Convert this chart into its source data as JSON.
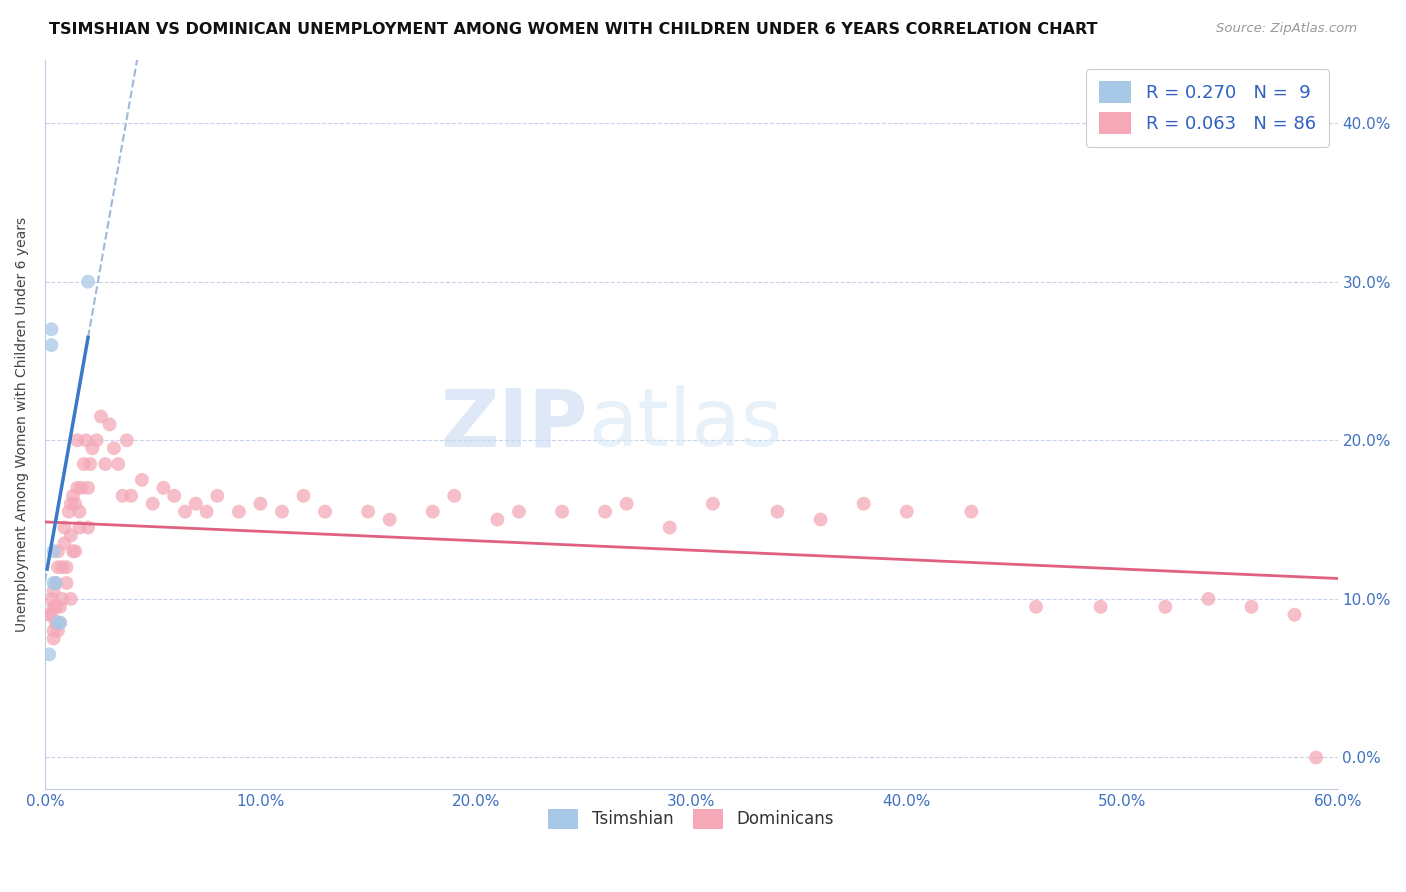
{
  "title": "TSIMSHIAN VS DOMINICAN UNEMPLOYMENT AMONG WOMEN WITH CHILDREN UNDER 6 YEARS CORRELATION CHART",
  "source": "Source: ZipAtlas.com",
  "ylabel": "Unemployment Among Women with Children Under 6 years",
  "y_tick_values": [
    0.0,
    0.1,
    0.2,
    0.3,
    0.4
  ],
  "xlim": [
    0.0,
    0.6
  ],
  "ylim": [
    -0.02,
    0.44
  ],
  "tsimshian_color": "#a8c8e8",
  "dominican_color": "#f4a8b8",
  "tsimshian_line_color": "#3a7ac8",
  "tsimshian_dashed_color": "#a0b8d8",
  "dominican_line_color": "#e06080",
  "legend_text_color": "#3060c0",
  "watermark_zip": "ZIP",
  "watermark_atlas": "atlas",
  "background_color": "#ffffff",
  "grid_color": "#c8d4e8",
  "marker_size": 100,
  "marker_alpha": 0.75,
  "tsimshian_x": [
    0.002,
    0.003,
    0.003,
    0.004,
    0.004,
    0.005,
    0.006,
    0.007,
    0.02
  ],
  "tsimshian_y": [
    0.065,
    0.26,
    0.27,
    0.13,
    0.11,
    0.11,
    0.085,
    0.085,
    0.3
  ],
  "dominican_x": [
    0.002,
    0.003,
    0.003,
    0.004,
    0.004,
    0.004,
    0.005,
    0.005,
    0.005,
    0.006,
    0.006,
    0.007,
    0.007,
    0.008,
    0.008,
    0.009,
    0.009,
    0.01,
    0.01,
    0.011,
    0.012,
    0.012,
    0.013,
    0.013,
    0.014,
    0.015,
    0.015,
    0.016,
    0.016,
    0.017,
    0.018,
    0.019,
    0.02,
    0.021,
    0.022,
    0.024,
    0.026,
    0.028,
    0.03,
    0.032,
    0.034,
    0.036,
    0.038,
    0.04,
    0.045,
    0.05,
    0.055,
    0.06,
    0.065,
    0.07,
    0.075,
    0.08,
    0.09,
    0.1,
    0.11,
    0.12,
    0.13,
    0.15,
    0.16,
    0.18,
    0.19,
    0.21,
    0.22,
    0.24,
    0.26,
    0.27,
    0.29,
    0.31,
    0.34,
    0.36,
    0.38,
    0.4,
    0.43,
    0.46,
    0.49,
    0.52,
    0.54,
    0.56,
    0.58,
    0.59,
    0.004,
    0.005,
    0.006,
    0.012,
    0.014,
    0.02
  ],
  "dominican_y": [
    0.09,
    0.09,
    0.1,
    0.075,
    0.095,
    0.105,
    0.085,
    0.095,
    0.11,
    0.08,
    0.12,
    0.095,
    0.085,
    0.12,
    0.1,
    0.135,
    0.145,
    0.11,
    0.12,
    0.155,
    0.14,
    0.16,
    0.165,
    0.13,
    0.16,
    0.17,
    0.2,
    0.145,
    0.155,
    0.17,
    0.185,
    0.2,
    0.17,
    0.185,
    0.195,
    0.2,
    0.215,
    0.185,
    0.21,
    0.195,
    0.185,
    0.165,
    0.2,
    0.165,
    0.175,
    0.16,
    0.17,
    0.165,
    0.155,
    0.16,
    0.155,
    0.165,
    0.155,
    0.16,
    0.155,
    0.165,
    0.155,
    0.155,
    0.15,
    0.155,
    0.165,
    0.15,
    0.155,
    0.155,
    0.155,
    0.16,
    0.145,
    0.16,
    0.155,
    0.15,
    0.16,
    0.155,
    0.155,
    0.095,
    0.095,
    0.095,
    0.1,
    0.095,
    0.09,
    0.0,
    0.08,
    0.095,
    0.13,
    0.1,
    0.13,
    0.145
  ]
}
